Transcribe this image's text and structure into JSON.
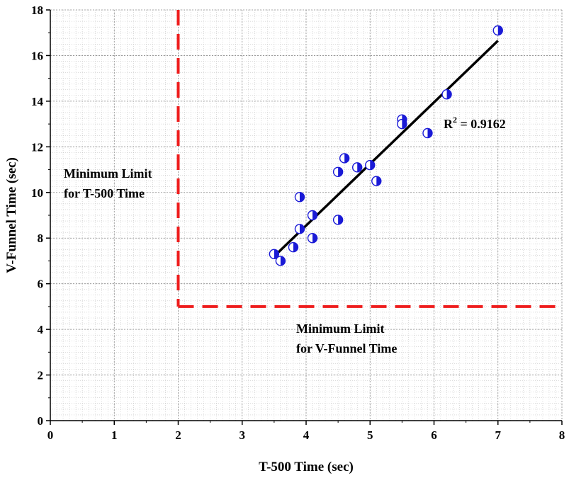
{
  "chart_data": {
    "type": "scatter",
    "xlabel": "T-500 Time (sec)",
    "ylabel": "V-Funnel Time (sec)",
    "xlim": [
      0,
      8
    ],
    "ylim": [
      0,
      18
    ],
    "x_ticks": [
      "0",
      "1",
      "2",
      "3",
      "4",
      "5",
      "6",
      "7",
      "8"
    ],
    "y_ticks": [
      "0",
      "2",
      "4",
      "6",
      "8",
      "10",
      "12",
      "14",
      "16",
      "18"
    ],
    "grid": true,
    "minor_grid": true,
    "points": [
      {
        "x": 3.5,
        "y": 7.3
      },
      {
        "x": 3.6,
        "y": 7.0
      },
      {
        "x": 3.8,
        "y": 7.6
      },
      {
        "x": 3.9,
        "y": 8.4
      },
      {
        "x": 3.9,
        "y": 9.8
      },
      {
        "x": 4.1,
        "y": 9.0
      },
      {
        "x": 4.1,
        "y": 8.0
      },
      {
        "x": 4.5,
        "y": 8.8
      },
      {
        "x": 4.5,
        "y": 10.9
      },
      {
        "x": 4.6,
        "y": 11.5
      },
      {
        "x": 4.8,
        "y": 11.1
      },
      {
        "x": 5.0,
        "y": 11.2
      },
      {
        "x": 5.1,
        "y": 10.5
      },
      {
        "x": 5.5,
        "y": 13.2
      },
      {
        "x": 5.5,
        "y": 13.0
      },
      {
        "x": 5.9,
        "y": 12.6
      },
      {
        "x": 6.2,
        "y": 14.3
      },
      {
        "x": 7.0,
        "y": 17.1
      }
    ],
    "fit_line": {
      "x": [
        3.5,
        7.0
      ],
      "y": [
        7.2,
        16.65
      ]
    },
    "r2_label": "R",
    "r2_sup": "2",
    "r2_value": " = 0.9162",
    "limit_x": 2,
    "limit_y": 5,
    "limit_x_label": [
      "Minimum Limit",
      "for T-500 Time"
    ],
    "limit_y_label": [
      "Minimum Limit",
      "for V-Funnel Time"
    ],
    "colors": {
      "marker_fill": "#1a1ad6",
      "marker_stroke": "#1a1ad6",
      "marker_highlight": "#e000e0",
      "fit_line": "#000000",
      "limit_line": "#ee1c1c",
      "grid": "#b8b8b8"
    }
  }
}
